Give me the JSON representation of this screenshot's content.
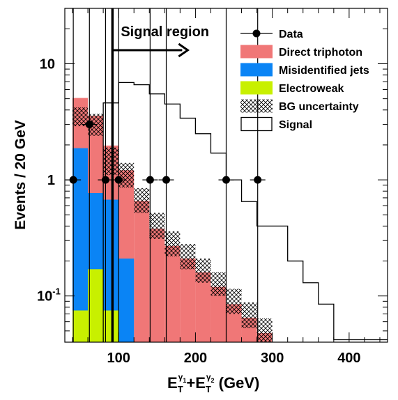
{
  "chart_data": {
    "type": "histogram",
    "ylabel": "Events / 20 GeV",
    "xlabel": {
      "base": "E",
      "t1": "T",
      "g1": "γ",
      "n1": "1",
      "plus": "+E",
      "t2": "T",
      "g2": "γ",
      "n2": "2",
      "unit": " (GeV)"
    },
    "y_scale": "log",
    "xlim": [
      30,
      450
    ],
    "ylim": [
      0.04,
      30
    ],
    "x_ticks": [
      {
        "value": 100,
        "label": "100"
      },
      {
        "value": 200,
        "label": "200"
      },
      {
        "value": 300,
        "label": "300"
      },
      {
        "value": 400,
        "label": "400"
      }
    ],
    "y_ticks": [
      {
        "value": 10,
        "label": "10",
        "base": "",
        "exp": ""
      },
      {
        "value": 1,
        "label": "1",
        "base": "",
        "exp": ""
      },
      {
        "value": 0.1,
        "label": "",
        "base": "10",
        "exp": "-1"
      }
    ],
    "bin_edges": [
      40,
      60,
      80,
      100,
      120,
      140,
      160,
      180,
      200,
      220,
      240,
      260,
      280,
      300,
      320,
      340,
      360,
      380,
      400,
      420,
      440,
      460
    ],
    "stack": [
      {
        "name": "Electroweak",
        "color": "#c8f000",
        "values": [
          0.075,
          0.17,
          0.075,
          0,
          0,
          0,
          0,
          0,
          0,
          0,
          0,
          0,
          0,
          0,
          0,
          0,
          0,
          0,
          0,
          0,
          0
        ]
      },
      {
        "name": "Misidentified jets",
        "color": "#0a84f5",
        "values": [
          1.8,
          0.6,
          0.6,
          0.21,
          0.04,
          0,
          0,
          0,
          0,
          0,
          0,
          0,
          0,
          0,
          0,
          0,
          0,
          0,
          0,
          0,
          0
        ]
      },
      {
        "name": "Direct triphoton",
        "color": "#f07777",
        "values": [
          3.2,
          2.8,
          1.3,
          1.0,
          0.62,
          0.38,
          0.27,
          0.21,
          0.16,
          0.12,
          0.085,
          0.065,
          0.048,
          0,
          0,
          0,
          0,
          0,
          0,
          0,
          0
        ]
      }
    ],
    "bg_uncertainty": {
      "name": "BG uncertainty",
      "lower": [
        2.9,
        2.4,
        1.1,
        0.86,
        0.52,
        0.31,
        0.22,
        0.17,
        0.13,
        0.1,
        0.07,
        0.053,
        0.04
      ],
      "upper": [
        4.2,
        3.7,
        1.9,
        1.4,
        0.85,
        0.52,
        0.36,
        0.28,
        0.21,
        0.16,
        0.115,
        0.088,
        0.064
      ]
    },
    "signal": {
      "name": "Signal",
      "values": [
        0,
        0,
        4.6,
        6.9,
        6.6,
        5.5,
        4.5,
        3.4,
        2.5,
        1.7,
        1.0,
        0.65,
        0.4,
        0.4,
        0.2,
        0.13,
        0.085,
        0.042,
        0.042,
        0.042,
        0.042
      ]
    },
    "data": {
      "name": "Data",
      "points": [
        {
          "x": 41,
          "y": 1,
          "xerr": 10
        },
        {
          "x": 62,
          "y": 3,
          "xerr": 10
        },
        {
          "x": 83,
          "y": 1,
          "xerr": 10
        },
        {
          "x": 100,
          "y": 1,
          "xerr": 10
        },
        {
          "x": 141,
          "y": 1,
          "xerr": 10
        },
        {
          "x": 162,
          "y": 1,
          "xerr": 10
        },
        {
          "x": 240,
          "y": 1,
          "xerr": 10
        },
        {
          "x": 281,
          "y": 1,
          "xerr": 10
        }
      ]
    },
    "signal_region": {
      "x": 92,
      "label": "Signal region"
    },
    "legend_position": "top-right",
    "legend": [
      {
        "label": "Data",
        "kind": "marker"
      },
      {
        "label": "Direct triphoton",
        "kind": "fill",
        "color": "#f07777"
      },
      {
        "label": "Misidentified jets",
        "kind": "fill",
        "color": "#0a84f5"
      },
      {
        "label": "Electroweak",
        "kind": "fill",
        "color": "#c8f000"
      },
      {
        "label": "BG uncertainty",
        "kind": "hatch"
      },
      {
        "label": "Signal",
        "kind": "open"
      }
    ]
  }
}
